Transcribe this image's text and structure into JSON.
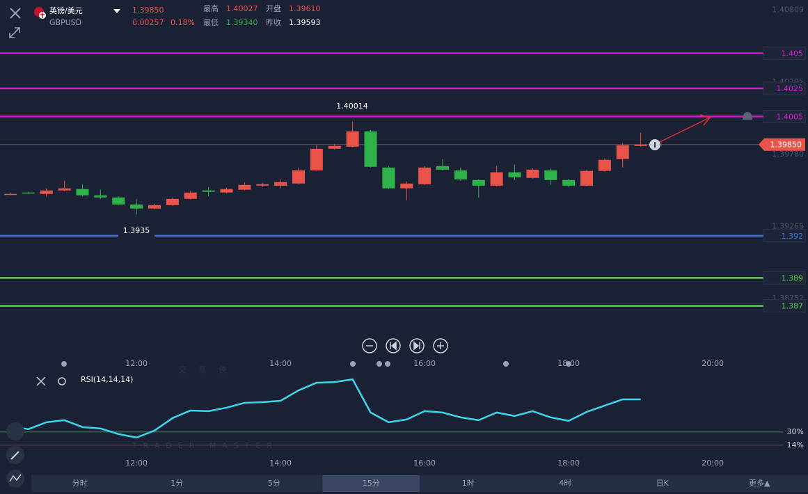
{
  "header": {
    "pair": "英镑/美元",
    "symbol": "GBPUSD",
    "price": "1.39850",
    "change": "0.00257",
    "change_pct": "0.18%",
    "high_label": "最高",
    "high": "1.40027",
    "open_label": "开盘",
    "open": "1.39610",
    "low_label": "最低",
    "low": "1.39340",
    "prev_label": "昨收",
    "prev_close": "1.39593"
  },
  "watermark": {
    "cn": "交易侠",
    "en": "TRADER MASTER"
  },
  "tabs": [
    {
      "label": "分时"
    },
    {
      "label": "1分"
    },
    {
      "label": "5分"
    },
    {
      "label": "15分",
      "selected": true
    },
    {
      "label": "1时"
    },
    {
      "label": "4时"
    },
    {
      "label": "日K"
    },
    {
      "label": "更多▲"
    }
  ],
  "chart_data": {
    "type": "candlestick",
    "categories": [
      null,
      null,
      null,
      null,
      null,
      null,
      null,
      "12:00",
      null,
      null,
      null,
      null,
      null,
      null,
      null,
      "14:00",
      null,
      null,
      null,
      null,
      null,
      null,
      null,
      "16:00",
      null,
      null,
      null,
      null,
      null,
      null,
      null,
      "18:00",
      null,
      null,
      null,
      null,
      null,
      null,
      null,
      "20:00"
    ],
    "open": [
      1.39498,
      1.39508,
      1.39498,
      1.39523,
      1.39533,
      1.39488,
      1.39473,
      1.39423,
      1.39394,
      1.39418,
      1.39463,
      1.39523,
      1.39508,
      1.39528,
      1.39557,
      1.39557,
      1.39572,
      1.39666,
      1.3982,
      1.39835,
      1.39944,
      1.39686,
      1.39538,
      1.39567,
      1.39696,
      1.39666,
      1.39597,
      1.39557,
      1.39652,
      1.39612,
      1.39666,
      1.39597,
      1.39557,
      1.39662,
      1.39746,
      1.3984,
      null,
      null,
      null,
      null
    ],
    "high": [
      1.39508,
      1.39513,
      1.39538,
      1.39592,
      1.39567,
      1.39528,
      1.39478,
      1.39463,
      1.39428,
      1.39473,
      1.39518,
      1.39547,
      1.39542,
      1.39582,
      1.39577,
      1.39602,
      1.39686,
      1.39845,
      1.39855,
      1.40014,
      1.39954,
      1.39696,
      1.39587,
      1.39696,
      1.39746,
      1.39686,
      1.39602,
      1.39696,
      1.39706,
      1.39681,
      1.39681,
      1.39607,
      1.39671,
      1.39751,
      1.3986,
      1.39934,
      null,
      null,
      null,
      null
    ],
    "low": [
      1.39488,
      1.39498,
      1.39478,
      1.39518,
      1.39483,
      1.39463,
      1.39418,
      1.3935,
      1.39389,
      1.39414,
      1.39458,
      1.39483,
      1.39503,
      1.39523,
      1.39547,
      1.39538,
      1.39567,
      1.39662,
      1.39815,
      1.3983,
      1.39686,
      1.39533,
      1.39453,
      1.39562,
      1.39666,
      1.39592,
      1.39473,
      1.39552,
      1.39597,
      1.39607,
      1.39562,
      1.39547,
      1.39552,
      1.39657,
      1.39686,
      1.39835,
      null,
      null,
      null,
      null
    ],
    "close": [
      1.39498,
      1.39503,
      1.39523,
      1.39538,
      1.39488,
      1.39473,
      1.39423,
      1.39394,
      1.39418,
      1.39463,
      1.39508,
      1.39513,
      1.39533,
      1.39562,
      1.39567,
      1.39582,
      1.39666,
      1.3982,
      1.3984,
      1.39944,
      1.39691,
      1.39538,
      1.39572,
      1.39686,
      1.39671,
      1.39602,
      1.39557,
      1.39652,
      1.39617,
      1.39671,
      1.39597,
      1.39557,
      1.39662,
      1.39741,
      1.39845,
      1.3985,
      null,
      null,
      null,
      null
    ],
    "up_color": "#e8534a",
    "down_color": "#2fb24a",
    "ylim": [
      1.385,
      1.4088
    ],
    "yticks": [
      1.40809,
      1.40295,
      {
        "value": 1.3978,
        "label": "1.39780"
      },
      1.39266,
      1.38752
    ],
    "levels": [
      {
        "value": 1.405,
        "color": "#d41ed4"
      },
      {
        "value": 1.4025,
        "color": "#d41ed4"
      },
      {
        "value": 1.4005,
        "color": "#d41ed4"
      },
      {
        "value": 1.392,
        "color": "#3a78e0"
      },
      {
        "value": 1.389,
        "color": "#5cd048"
      },
      {
        "value": 1.387,
        "color": "#5cd048"
      }
    ],
    "last_price": {
      "value": 1.3985,
      "label": "1.39850"
    },
    "annotations": [
      "1.40014",
      "1.3935"
    ],
    "rsi": {
      "name": "RSI(14,14,14)",
      "color": "#3dd6ea",
      "values": [
        36.7,
        33.4,
        41.8,
        44.3,
        35.9,
        34.2,
        27.5,
        23.2,
        31.7,
        46.8,
        56.1,
        55.3,
        59.5,
        65.4,
        66.2,
        67.9,
        80.5,
        89.8,
        90.6,
        94,
        53.6,
        41.8,
        45.2,
        55.3,
        53.6,
        47.7,
        44.3,
        53.6,
        49.4,
        55.3,
        47.7,
        43.5,
        54.4,
        62,
        69.6,
        69.6,
        null,
        null,
        null,
        null
      ],
      "ylim": [
        -20,
        100
      ],
      "yticks": [
        {
          "value": 30,
          "label": "30%",
          "color": "#3d8a4e"
        },
        {
          "value": 14,
          "label": "14%",
          "color": "#8a3d45"
        }
      ]
    }
  }
}
